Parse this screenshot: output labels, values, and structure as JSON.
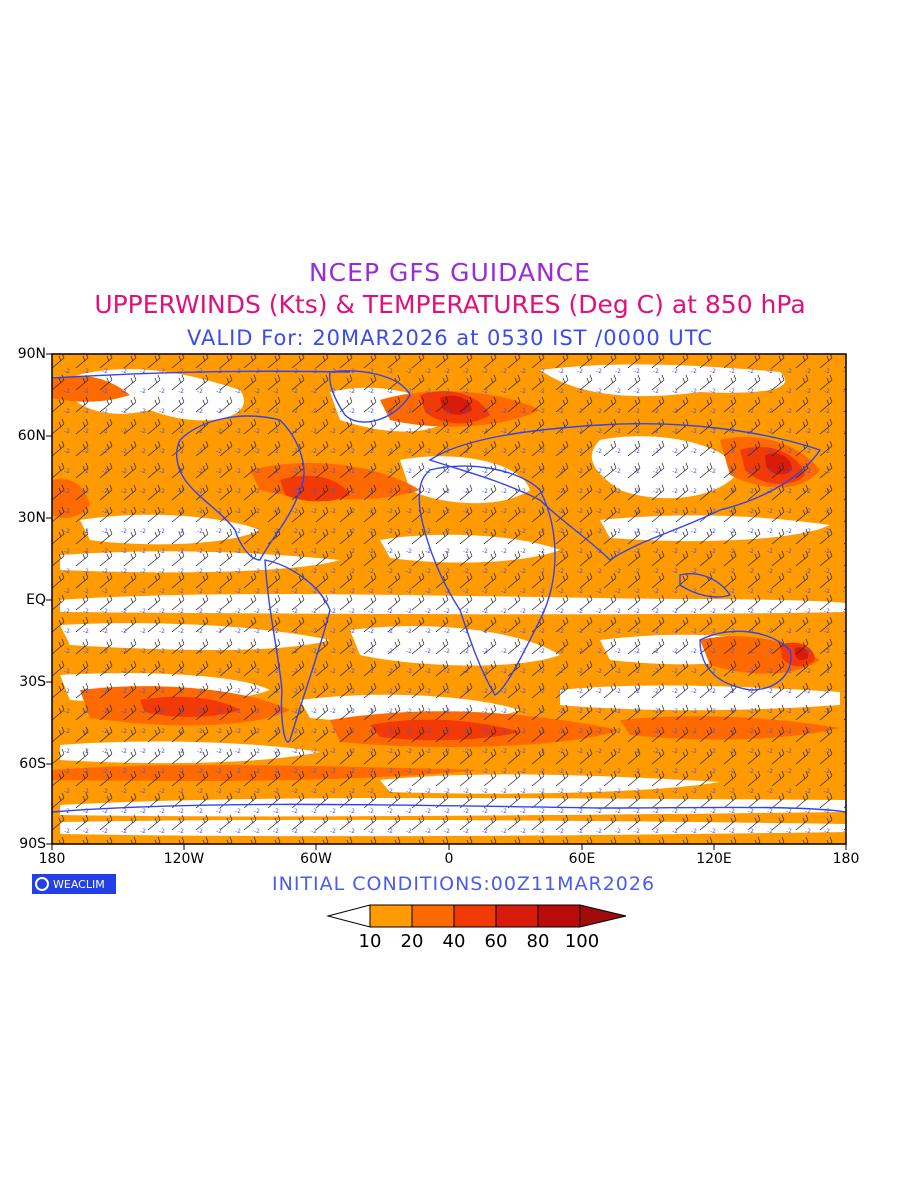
{
  "header": {
    "line1": "NCEP GFS GUIDANCE",
    "line2": "UPPERWINDS (Kts) & TEMPERATURES (Deg C) at 850 hPa",
    "line3": "VALID For: 20MAR2026 at 0530 IST /0000 UTC"
  },
  "axes": {
    "lat_labels": [
      "90N",
      "60N",
      "30N",
      "EQ",
      "30S",
      "60S",
      "90S"
    ],
    "lon_labels": [
      "180",
      "120W",
      "60W",
      "0",
      "60E",
      "120E",
      "180"
    ]
  },
  "logo": {
    "text": "WEACLIM"
  },
  "footer": {
    "initial": "INITIAL CONDITIONS:00Z11MAR2026"
  },
  "colorbar": {
    "ticks": [
      "10",
      "20",
      "40",
      "60",
      "80",
      "100"
    ],
    "colors": [
      "#ffffff",
      "#ff9a00",
      "#ff6a00",
      "#f23a06",
      "#d81b0b",
      "#bb0a0a",
      "#a00c0c"
    ]
  },
  "colors": {
    "coastline": "#3344ee",
    "barb": "#222222",
    "temperature_text": "#4455ee"
  }
}
